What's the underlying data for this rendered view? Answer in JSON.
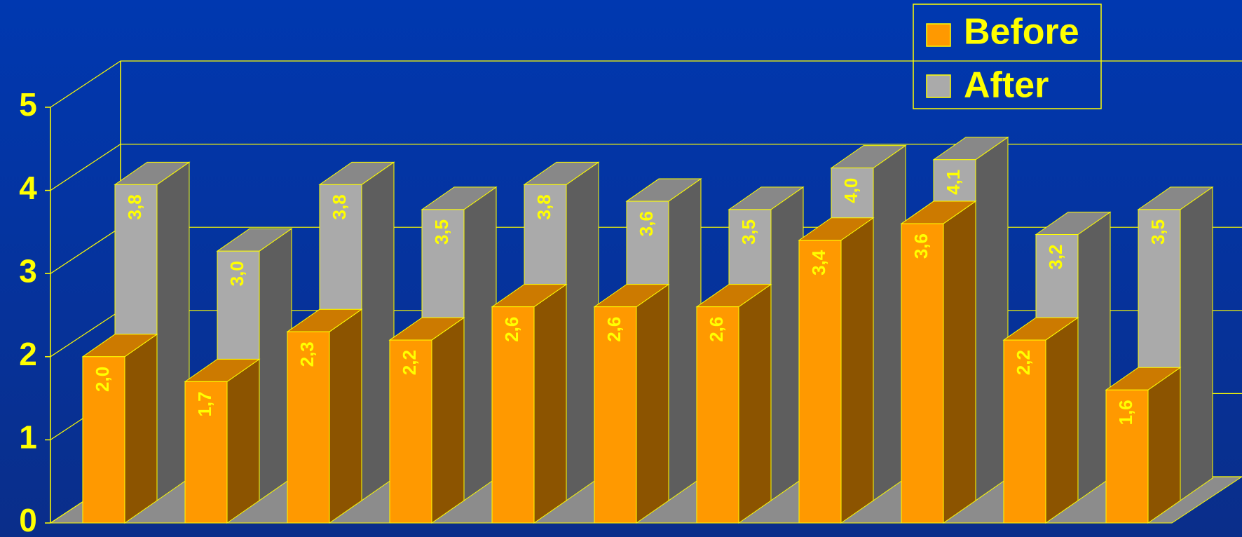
{
  "chart_data": {
    "type": "bar3d",
    "categories": [
      null,
      null,
      null,
      null,
      null,
      null,
      null,
      null,
      null,
      null,
      null
    ],
    "series": [
      {
        "name": "Before",
        "color": "#ff9900",
        "values": [
          2.0,
          1.7,
          2.3,
          2.2,
          2.6,
          2.6,
          2.6,
          3.4,
          3.6,
          2.2,
          1.6
        ],
        "value_labels": [
          "2,0",
          "1,7",
          "2,3",
          "2,2",
          "2,6",
          "2,6",
          "2,6",
          "3,4",
          "3,6",
          "2,2",
          "1,6"
        ]
      },
      {
        "name": "After",
        "color": "#aaaaaa",
        "values": [
          3.8,
          3.0,
          3.8,
          3.5,
          3.8,
          3.6,
          3.5,
          4.0,
          4.1,
          3.2,
          3.5
        ],
        "value_labels": [
          "3,8",
          "3,0",
          "3,8",
          "3,5",
          "3,8",
          "3,6",
          "3,5",
          "4,0",
          "4,1",
          "3,2",
          "3,5"
        ]
      }
    ],
    "ylim": [
      0,
      5
    ],
    "yticks": [
      0,
      1,
      2,
      3,
      4,
      5
    ],
    "grid": true,
    "legend": "top-right"
  }
}
